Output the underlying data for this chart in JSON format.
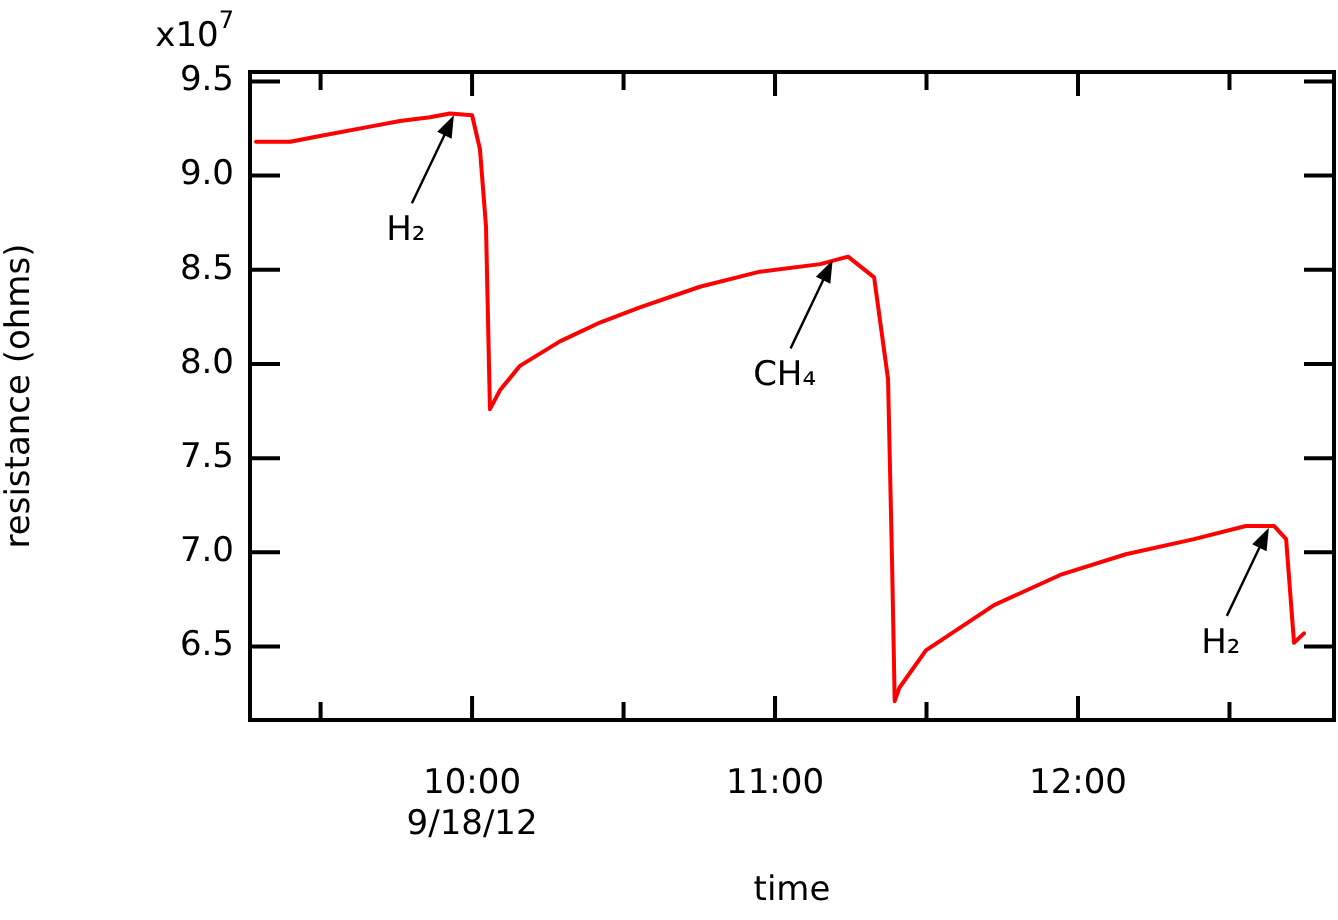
{
  "chart_data": {
    "type": "line",
    "xlabel": "time",
    "ylabel": "resistance (ohms)",
    "x": [
      9.287,
      9.4,
      9.498,
      9.663,
      9.762,
      9.861,
      9.927,
      10.0,
      10.026,
      10.046,
      10.059,
      10.092,
      10.158,
      10.29,
      10.422,
      10.554,
      10.752,
      10.95,
      11.149,
      11.241,
      11.327,
      11.373,
      11.386,
      11.395,
      11.41,
      11.498,
      11.723,
      11.941,
      12.158,
      12.383,
      12.554,
      12.647,
      12.687,
      12.713,
      12.746
    ],
    "series": [
      {
        "color": "#ff0000",
        "values": [
          9.18,
          9.18,
          9.21,
          9.26,
          9.29,
          9.31,
          9.33,
          9.32,
          9.14,
          8.73,
          7.76,
          7.86,
          7.99,
          8.12,
          8.22,
          8.3,
          8.41,
          8.49,
          8.53,
          8.57,
          8.46,
          7.92,
          6.97,
          6.21,
          6.28,
          6.48,
          6.72,
          6.88,
          6.99,
          7.07,
          7.14,
          7.14,
          7.07,
          6.52,
          6.57
        ]
      }
    ],
    "xlim": [
      9.267,
      12.845
    ],
    "xticks": [
      {
        "value": 9.5,
        "label": null
      },
      {
        "value": 10,
        "label": "10:00\n9/18/12"
      },
      {
        "value": 10.5,
        "label": null
      },
      {
        "value": 11,
        "label": "11:00"
      },
      {
        "value": 11.5,
        "label": null
      },
      {
        "value": 12,
        "label": "12:00"
      },
      {
        "value": 12.5,
        "label": null
      }
    ],
    "ylim": [
      6.11,
      9.55
    ],
    "yticks": [
      6.5,
      {
        "value": 7,
        "label": "7.0"
      },
      7.5,
      {
        "value": 8,
        "label": "8.0"
      },
      8.5,
      {
        "value": 9,
        "label": "9.0"
      },
      9.5
    ],
    "annotations": [
      "x10$^{7}$",
      {
        "text": "H₂",
        "x": 9.94,
        "y": 9.32
      },
      {
        "text": "CH₄",
        "x": 11.19,
        "y": 8.55
      },
      {
        "text": "H₂",
        "x": 12.63,
        "y": 7.13
      }
    ],
    "grid": false,
    "legend": false,
    "marker": "none",
    "line_style": "solid"
  }
}
